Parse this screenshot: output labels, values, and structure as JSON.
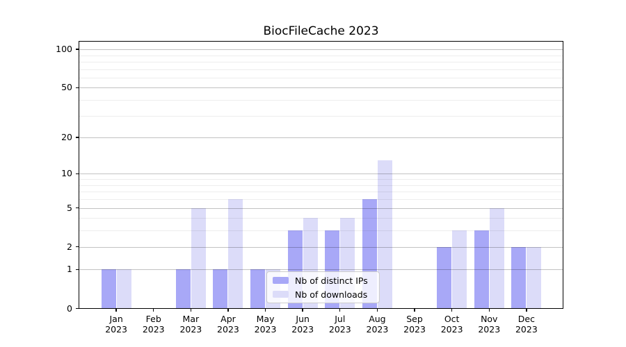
{
  "chart_data": {
    "type": "bar",
    "title": "BiocFileCache 2023",
    "categories": [
      "Jan",
      "Feb",
      "Mar",
      "Apr",
      "May",
      "Jun",
      "Jul",
      "Aug",
      "Sep",
      "Oct",
      "Nov",
      "Dec"
    ],
    "category_sublabel": "2023",
    "series": [
      {
        "name": "Nb of distinct IPs",
        "color": "#a8a8f7",
        "values": [
          1,
          0,
          1,
          1,
          1,
          3,
          3,
          6,
          0,
          2,
          3,
          2
        ]
      },
      {
        "name": "Nb of downloads",
        "color": "#dcdcf9",
        "values": [
          1,
          0,
          5,
          6,
          1,
          4,
          4,
          13,
          0,
          3,
          5,
          2
        ]
      }
    ],
    "y_axis": {
      "scale": "log1p",
      "ticks": [
        0,
        1,
        2,
        5,
        10,
        20,
        50,
        100
      ],
      "minor_ticks": [
        3,
        4,
        6,
        7,
        8,
        9,
        30,
        40,
        60,
        70,
        80,
        90
      ],
      "ylim": [
        0,
        117
      ]
    },
    "legend": {
      "position": "inside-lower-center"
    },
    "grid": {
      "major_color": "rgba(0,0,0,0.24)",
      "minor_color": "rgba(0,0,0,0.07)",
      "drawn_over_bars": true
    },
    "background": "#ffffff"
  }
}
